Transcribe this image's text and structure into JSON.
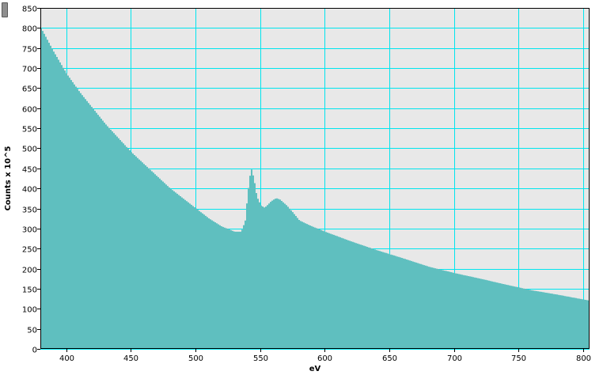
{
  "chart_data": {
    "type": "area",
    "title": "",
    "xlabel": "eV",
    "ylabel": "Counts x 10^5",
    "xlim": [
      380,
      805
    ],
    "ylim": [
      0,
      850
    ],
    "grid": true,
    "x_ticks": [
      400,
      450,
      500,
      550,
      600,
      650,
      700,
      750,
      800
    ],
    "y_ticks": [
      0,
      50,
      100,
      150,
      200,
      250,
      300,
      350,
      400,
      450,
      500,
      550,
      600,
      650,
      700,
      750,
      800,
      850
    ],
    "colors": {
      "fill": "#5fbfbf",
      "plot_bg": "#e8e8e8",
      "grid": "#00e5ee"
    },
    "x": [
      380,
      390,
      400,
      410,
      420,
      430,
      440,
      450,
      460,
      470,
      480,
      490,
      500,
      510,
      520,
      530,
      535,
      538,
      540,
      542,
      543,
      545,
      547,
      550,
      553,
      555,
      558,
      562,
      565,
      570,
      575,
      580,
      590,
      600,
      620,
      640,
      660,
      680,
      700,
      720,
      740,
      760,
      780,
      805
    ],
    "series": [
      {
        "values": [
          800,
          740,
          685,
          640,
          600,
          560,
          525,
          490,
          460,
          430,
          400,
          375,
          350,
          325,
          305,
          292,
          292,
          320,
          390,
          440,
          448,
          420,
          380,
          358,
          352,
          358,
          368,
          376,
          372,
          358,
          340,
          320,
          305,
          292,
          268,
          246,
          226,
          205,
          189,
          175,
          160,
          146,
          135,
          120
        ]
      }
    ]
  },
  "ui": {
    "scroll_handle": "scroll-handle"
  }
}
